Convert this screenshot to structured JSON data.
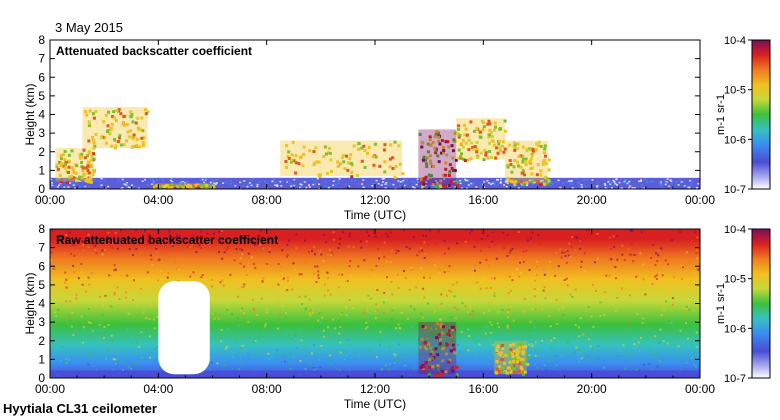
{
  "date": "3 May 2015",
  "station": "Hyytiala CL31 ceilometer",
  "colors": {
    "scale": [
      "#ffffff",
      "#4b4bd6",
      "#3a8ff0",
      "#35c1c1",
      "#3cc03c",
      "#c6d83a",
      "#f0c020",
      "#f07a20",
      "#d82020",
      "#7a0e5a"
    ],
    "background": "#ffffff"
  },
  "chart_data": [
    {
      "type": "heatmap",
      "title": "Attenuated backscatter coefficient",
      "xlabel": "Time (UTC)",
      "ylabel": "Height (km)",
      "xlim": [
        0,
        24
      ],
      "ylim": [
        0,
        8
      ],
      "x_ticks": [
        0,
        4,
        8,
        12,
        16,
        20,
        24
      ],
      "x_tick_labels": [
        "00:00",
        "04:00",
        "08:00",
        "12:00",
        "16:00",
        "20:00",
        "00:00"
      ],
      "y_ticks": [
        0,
        1,
        2,
        3,
        4,
        5,
        6,
        7,
        8
      ],
      "y_tick_labels": [
        "0",
        "1",
        "2",
        "3",
        "4",
        "5",
        "6",
        "7",
        "8"
      ],
      "colorbar": {
        "scale": "log",
        "range": [
          1e-07,
          0.0001
        ],
        "tick_labels": [
          "10-7",
          "10-6",
          "10-5",
          "10-4"
        ],
        "unit_label": "m-1 sr-1"
      },
      "features": [
        {
          "kind": "boundary_layer",
          "start": 0,
          "end": 24,
          "top_km": 0.6,
          "level": 1e-06
        },
        {
          "kind": "cloud",
          "start": 0.2,
          "end": 1.6,
          "bottom_km": 0.4,
          "top_km": 2.2,
          "level": 1e-05
        },
        {
          "kind": "cloud",
          "start": 1.2,
          "end": 3.6,
          "bottom_km": 2.2,
          "top_km": 4.4,
          "level": 1e-05
        },
        {
          "kind": "cloud",
          "start": 3.8,
          "end": 6.0,
          "bottom_km": 0.1,
          "top_km": 0.3,
          "level": 1e-05
        },
        {
          "kind": "cloud",
          "start": 8.5,
          "end": 13.0,
          "bottom_km": 0.7,
          "top_km": 2.6,
          "level": 1e-05
        },
        {
          "kind": "cloud",
          "start": 13.6,
          "end": 15.0,
          "bottom_km": 0.2,
          "top_km": 3.2,
          "level": 0.0001
        },
        {
          "kind": "cloud",
          "start": 15.0,
          "end": 16.8,
          "bottom_km": 1.6,
          "top_km": 3.8,
          "level": 1e-05
        },
        {
          "kind": "cloud",
          "start": 16.8,
          "end": 18.4,
          "bottom_km": 0.3,
          "top_km": 2.6,
          "level": 1e-05
        }
      ]
    },
    {
      "type": "heatmap",
      "title": "Raw attenuated backscatter coefficient",
      "xlabel": "Time (UTC)",
      "ylabel": "Height (km)",
      "xlim": [
        0,
        24
      ],
      "ylim": [
        0,
        8
      ],
      "x_ticks": [
        0,
        4,
        8,
        12,
        16,
        20,
        24
      ],
      "x_tick_labels": [
        "00:00",
        "04:00",
        "08:00",
        "12:00",
        "16:00",
        "20:00",
        "00:00"
      ],
      "y_ticks": [
        0,
        1,
        2,
        3,
        4,
        5,
        6,
        7,
        8
      ],
      "y_tick_labels": [
        "0",
        "1",
        "2",
        "3",
        "4",
        "5",
        "6",
        "7",
        "8"
      ],
      "colorbar": {
        "scale": "log",
        "range": [
          1e-07,
          0.0001
        ],
        "tick_labels": [
          "10-7",
          "10-6",
          "10-5",
          "10-4"
        ],
        "unit_label": "m-1 sr-1"
      },
      "features": [
        {
          "kind": "noise_gradient",
          "start": 0,
          "end": 24,
          "low_level": 1e-07,
          "high_level": 0.0001
        },
        {
          "kind": "gap",
          "start": 4.0,
          "end": 5.9,
          "bottom_km": 0.2,
          "top_km": 5.2
        },
        {
          "kind": "cloud",
          "start": 13.6,
          "end": 15.0,
          "bottom_km": 0.2,
          "top_km": 3.0,
          "level": 0.0001
        },
        {
          "kind": "cloud",
          "start": 16.4,
          "end": 17.6,
          "bottom_km": 0.2,
          "top_km": 2.0,
          "level": 1e-05
        }
      ]
    }
  ]
}
